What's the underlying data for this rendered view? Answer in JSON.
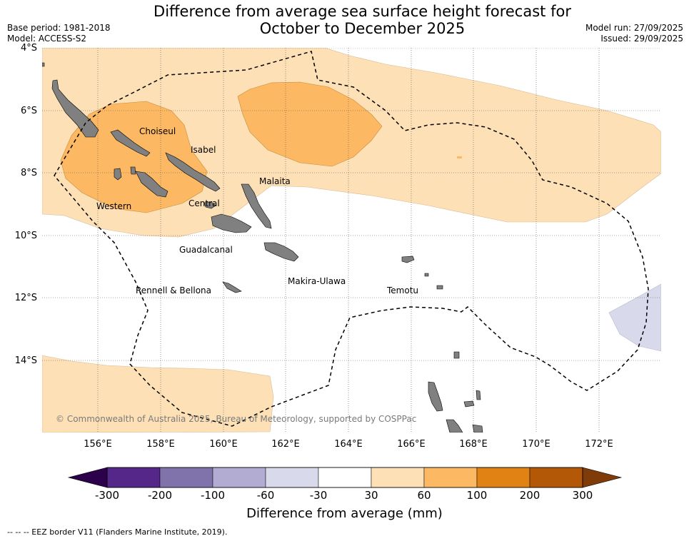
{
  "title_line1": "Difference from average sea surface height forecast for",
  "title_line2": "October to December 2025",
  "meta": {
    "base_period": "Base period: 1981-2018",
    "model": "Model: ACCESS-S2",
    "model_run": "Model run: 27/09/2025",
    "issued": "Issued: 29/09/2025"
  },
  "axes": {
    "lat_labels": [
      "4°S",
      "6°S",
      "8°S",
      "10°S",
      "12°S",
      "14°S"
    ],
    "lon_labels": [
      "156°E",
      "158°E",
      "160°E",
      "162°E",
      "164°E",
      "166°E",
      "168°E",
      "170°E",
      "172°E"
    ]
  },
  "places": [
    "Choiseul",
    "Isabel",
    "Malaita",
    "Western",
    "Central",
    "Guadalcanal",
    "Makira-Ulawa",
    "Rennell & Bellona",
    "Temotu"
  ],
  "copyright": "© Commonwealth of Australia 2025, Bureau of Meteorology, supported by COSPPac",
  "colorbar": {
    "ticks": [
      "-300",
      "-200",
      "-100",
      "-60",
      "-30",
      "30",
      "60",
      "100",
      "200",
      "300"
    ],
    "colors": [
      "#542788",
      "#8073ac",
      "#b2abd2",
      "#d8daeb",
      "#ffffff",
      "#fee0b6",
      "#fdb863",
      "#e08214",
      "#b35806"
    ],
    "under_color": "#2d004b",
    "over_color": "#7f3b08",
    "label": "Difference from average (mm)"
  },
  "footnote": "--  --  -- EEZ border V11 (Flanders Marine Institute, 2019)."
}
